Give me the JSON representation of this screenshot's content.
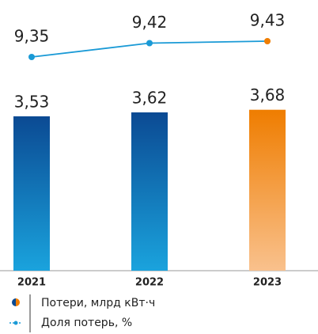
{
  "chart_data": {
    "type": "bar_line",
    "categories": [
      "2021",
      "2022",
      "2023"
    ],
    "series": [
      {
        "name": "Потери, млрд кВт·ч",
        "type": "bar",
        "values": [
          3.53,
          3.62,
          3.68
        ],
        "value_labels": [
          "3,53",
          "3,62",
          "3,68"
        ],
        "colors": [
          [
            "#0b4a93",
            "#1aa3dd"
          ],
          [
            "#0b4a93",
            "#1aa3dd"
          ],
          [
            "#ef7d00",
            "#f9c18d"
          ]
        ]
      },
      {
        "name": "Доля потерь, %",
        "type": "line",
        "axis": "y2",
        "values": [
          9.35,
          9.42,
          9.43
        ],
        "value_labels": [
          "9,35",
          "9,42",
          "9,43"
        ],
        "color": "#1a9ad6",
        "colors": [
          "#1a9ad6",
          "#1a9ad6",
          "#ef7d00"
        ]
      }
    ],
    "ylim": [
      0,
      4
    ],
    "y2lim": [
      9.2,
      9.5
    ]
  }
}
